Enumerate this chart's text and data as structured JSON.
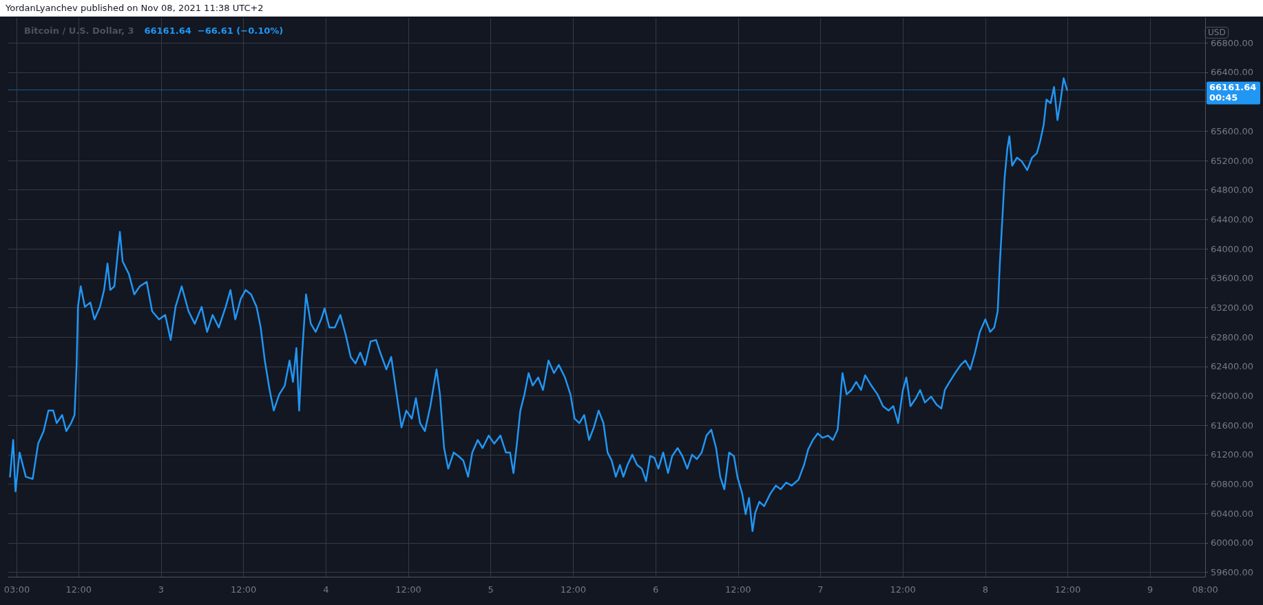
{
  "chart_data": {
    "type": "line",
    "title": "Bitcoin / U.S. Dollar, 3",
    "subtitle": "66161.64  −66.61 (−0.10%)",
    "ylabel": "USD",
    "annotations": [
      "YordanLyanchev published on Nov 08, 2021 11:38 UTC+2",
      "00:45"
    ],
    "xlim": [
      "2021-11-02T01:45",
      "2021-11-09T08:00"
    ],
    "xticks": [
      {
        "value": "2021-11-02T03:00",
        "label": "03:00"
      },
      {
        "value": "2021-11-02T12:00",
        "label": "12:00"
      },
      {
        "value": "2021-11-03",
        "label": "3"
      },
      {
        "value": "2021-11-03T12:00",
        "label": "12:00"
      },
      {
        "value": "2021-11-04",
        "label": "4"
      },
      {
        "value": "2021-11-04T12:00",
        "label": "12:00"
      },
      {
        "value": "2021-11-05",
        "label": "5"
      },
      {
        "value": "2021-11-05T12:00",
        "label": "12:00"
      },
      {
        "value": "2021-11-06",
        "label": "6"
      },
      {
        "value": "2021-11-06T12:00",
        "label": "12:00"
      },
      {
        "value": "2021-11-07",
        "label": "7"
      },
      {
        "value": "2021-11-07T12:00",
        "label": "12:00"
      },
      {
        "value": "2021-11-08",
        "label": "8"
      },
      {
        "value": "2021-11-08T12:00",
        "label": "12:00"
      },
      {
        "value": "2021-11-09",
        "label": "9"
      },
      {
        "value": "2021-11-09T08:00",
        "label": "08:00"
      }
    ],
    "ylim": [
      59540,
      67140
    ],
    "yticks": [
      {
        "value": 59600,
        "label": "59600.00"
      },
      {
        "value": 60000,
        "label": "60000.00"
      },
      {
        "value": 60400,
        "label": "60400.00"
      },
      {
        "value": 60800,
        "label": "60800.00"
      },
      {
        "value": 61200,
        "label": "61200.00"
      },
      {
        "value": 61600,
        "label": "61600.00"
      },
      {
        "value": 62000,
        "label": "62000.00"
      },
      {
        "value": 62400,
        "label": "62400.00"
      },
      {
        "value": 62800,
        "label": "62800.00"
      },
      {
        "value": 63200,
        "label": "63200.00"
      },
      {
        "value": 63600,
        "label": "63600.00"
      },
      {
        "value": 64000,
        "label": "64000.00"
      },
      {
        "value": 64400,
        "label": "64400.00"
      },
      {
        "value": 64800,
        "label": "64800.00"
      },
      {
        "value": 65200,
        "label": "65200.00"
      },
      {
        "value": 65600,
        "label": "65600.00"
      },
      {
        "value": 66000,
        "label": null
      },
      {
        "value": 66400,
        "label": "66400.00"
      },
      {
        "value": 66800,
        "label": "66800.00"
      }
    ],
    "grid": true,
    "marker": "none",
    "line_style": "solid",
    "ref_lines": [
      {
        "axis": "y",
        "value": 66161.64,
        "label": "66161.64",
        "color": "#2196f3",
        "line_style": "dotted"
      }
    ],
    "series": [
      {
        "color": "#2196f3",
        "x": [
          "2021-11-02T02:00",
          "2021-11-02T02:28",
          "2021-11-02T02:48",
          "2021-11-02T03:24",
          "2021-11-02T04:18",
          "2021-11-02T05:18",
          "2021-11-02T06:06",
          "2021-11-02T06:54",
          "2021-11-02T07:36",
          "2021-11-02T08:18",
          "2021-11-02T08:48",
          "2021-11-02T09:36",
          "2021-11-02T10:12",
          "2021-11-02T10:54",
          "2021-11-02T11:24",
          "2021-11-02T11:42",
          "2021-11-02T11:54",
          "2021-11-02T12:18",
          "2021-11-02T12:54",
          "2021-11-02T13:42",
          "2021-11-02T14:18",
          "2021-11-02T15:06",
          "2021-11-02T15:42",
          "2021-11-02T16:12",
          "2021-11-02T16:36",
          "2021-11-02T17:12",
          "2021-11-02T18:00",
          "2021-11-02T18:24",
          "2021-11-02T19:18",
          "2021-11-02T20:06",
          "2021-11-02T20:54",
          "2021-11-02T21:54",
          "2021-11-02T22:42",
          "2021-11-02T23:42",
          "2021-11-03T00:36",
          "2021-11-03T01:24",
          "2021-11-03T02:06",
          "2021-11-03T03:00",
          "2021-11-03T04:00",
          "2021-11-03T04:54",
          "2021-11-03T05:54",
          "2021-11-03T06:42",
          "2021-11-03T07:30",
          "2021-11-03T08:24",
          "2021-11-03T09:24",
          "2021-11-03T10:06",
          "2021-11-03T10:48",
          "2021-11-03T11:36",
          "2021-11-03T12:18",
          "2021-11-03T13:06",
          "2021-11-03T13:54",
          "2021-11-03T14:30",
          "2021-11-03T15:06",
          "2021-11-03T15:48",
          "2021-11-03T16:24",
          "2021-11-03T17:12",
          "2021-11-03T18:00",
          "2021-11-03T18:42",
          "2021-11-03T19:12",
          "2021-11-03T19:42",
          "2021-11-03T20:06",
          "2021-11-03T20:30",
          "2021-11-03T21:06",
          "2021-11-03T21:48",
          "2021-11-03T22:30",
          "2021-11-03T23:18",
          "2021-11-03T23:48",
          "2021-11-04T00:30",
          "2021-11-04T01:18",
          "2021-11-04T02:06",
          "2021-11-04T02:54",
          "2021-11-04T03:36",
          "2021-11-04T04:18",
          "2021-11-04T05:00",
          "2021-11-04T05:42",
          "2021-11-04T06:30",
          "2021-11-04T07:18",
          "2021-11-04T07:54",
          "2021-11-04T08:48",
          "2021-11-04T09:30",
          "2021-11-04T10:12",
          "2021-11-04T11:00",
          "2021-11-04T11:42",
          "2021-11-04T12:30",
          "2021-11-04T13:06",
          "2021-11-04T13:42",
          "2021-11-04T14:24",
          "2021-11-04T15:12",
          "2021-11-04T16:06",
          "2021-11-04T16:36",
          "2021-11-04T17:12",
          "2021-11-04T17:48",
          "2021-11-04T18:36",
          "2021-11-04T19:18",
          "2021-11-04T20:00",
          "2021-11-04T20:42",
          "2021-11-04T21:18",
          "2021-11-04T22:06",
          "2021-11-04T22:48",
          "2021-11-04T23:42",
          "2021-11-05T00:30",
          "2021-11-05T01:24",
          "2021-11-05T02:12",
          "2021-11-05T02:48",
          "2021-11-05T03:18",
          "2021-11-05T03:48",
          "2021-11-05T04:18",
          "2021-11-05T04:54",
          "2021-11-05T05:30",
          "2021-11-05T06:06",
          "2021-11-05T06:54",
          "2021-11-05T07:36",
          "2021-11-05T08:24",
          "2021-11-05T09:12",
          "2021-11-05T09:54",
          "2021-11-05T10:48",
          "2021-11-05T11:36",
          "2021-11-05T12:12",
          "2021-11-05T12:54",
          "2021-11-05T13:36",
          "2021-11-05T14:18",
          "2021-11-05T15:00",
          "2021-11-05T15:42",
          "2021-11-05T16:24",
          "2021-11-05T17:00",
          "2021-11-05T17:36",
          "2021-11-05T18:12",
          "2021-11-05T18:48",
          "2021-11-05T19:18",
          "2021-11-05T19:54",
          "2021-11-05T20:36",
          "2021-11-05T21:18",
          "2021-11-05T22:00",
          "2021-11-05T22:36",
          "2021-11-05T23:12",
          "2021-11-05T23:48",
          "2021-11-06T00:24",
          "2021-11-06T01:06",
          "2021-11-06T01:48",
          "2021-11-06T02:24",
          "2021-11-06T03:12",
          "2021-11-06T03:54",
          "2021-11-06T04:36",
          "2021-11-06T05:18",
          "2021-11-06T06:00",
          "2021-11-06T06:42",
          "2021-11-06T07:24",
          "2021-11-06T08:06",
          "2021-11-06T08:48",
          "2021-11-06T09:24",
          "2021-11-06T10:00",
          "2021-11-06T10:42",
          "2021-11-06T11:24",
          "2021-11-06T11:54",
          "2021-11-06T12:36",
          "2021-11-06T13:06",
          "2021-11-06T13:36",
          "2021-11-06T14:06",
          "2021-11-06T14:30",
          "2021-11-06T15:06",
          "2021-11-06T15:48",
          "2021-11-06T16:42",
          "2021-11-06T17:30",
          "2021-11-06T18:12",
          "2021-11-06T19:00",
          "2021-11-06T19:48",
          "2021-11-06T20:48",
          "2021-11-06T21:36",
          "2021-11-06T22:12",
          "2021-11-06T22:54",
          "2021-11-06T23:36",
          "2021-11-07T00:18",
          "2021-11-07T01:06",
          "2021-11-07T01:48",
          "2021-11-07T02:30",
          "2021-11-07T03:12",
          "2021-11-07T03:48",
          "2021-11-07T04:30",
          "2021-11-07T05:12",
          "2021-11-07T05:54",
          "2021-11-07T06:30",
          "2021-11-07T07:24",
          "2021-11-07T08:18",
          "2021-11-07T09:06",
          "2021-11-07T09:54",
          "2021-11-07T10:36",
          "2021-11-07T11:18",
          "2021-11-07T12:00",
          "2021-11-07T12:30",
          "2021-11-07T13:06",
          "2021-11-07T13:54",
          "2021-11-07T14:30",
          "2021-11-07T15:12",
          "2021-11-07T16:06",
          "2021-11-07T16:54",
          "2021-11-07T17:36",
          "2021-11-07T18:06",
          "2021-11-07T18:48",
          "2021-11-07T19:36",
          "2021-11-07T20:24",
          "2021-11-07T21:06",
          "2021-11-07T21:48",
          "2021-11-07T22:30",
          "2021-11-07T23:12",
          "2021-11-08T00:00",
          "2021-11-08T00:42",
          "2021-11-08T01:18",
          "2021-11-08T01:48",
          "2021-11-08T02:06",
          "2021-11-08T02:30",
          "2021-11-08T02:48",
          "2021-11-08T03:12",
          "2021-11-08T03:30",
          "2021-11-08T03:54",
          "2021-11-08T04:36",
          "2021-11-08T05:18",
          "2021-11-08T06:06",
          "2021-11-08T06:48",
          "2021-11-08T07:30",
          "2021-11-08T08:00",
          "2021-11-08T08:30",
          "2021-11-08T08:54",
          "2021-11-08T09:30",
          "2021-11-08T10:00",
          "2021-11-08T10:30",
          "2021-11-08T10:54",
          "2021-11-08T11:24",
          "2021-11-08T11:54"
        ],
        "values": [
          60900,
          61400,
          60700,
          61230,
          60900,
          60870,
          61350,
          61520,
          61800,
          61800,
          61630,
          61740,
          61520,
          61630,
          61740,
          62420,
          63210,
          63490,
          63210,
          63270,
          63040,
          63210,
          63440,
          63800,
          63440,
          63490,
          64230,
          63830,
          63660,
          63380,
          63490,
          63550,
          63150,
          63040,
          63100,
          62760,
          63210,
          63490,
          63150,
          62980,
          63210,
          62870,
          63100,
          62930,
          63210,
          63440,
          63040,
          63320,
          63440,
          63380,
          63210,
          62930,
          62480,
          62080,
          61800,
          62020,
          62140,
          62480,
          62190,
          62650,
          61800,
          62530,
          63380,
          62980,
          62870,
          63040,
          63190,
          62930,
          62930,
          63100,
          62820,
          62530,
          62440,
          62590,
          62420,
          62740,
          62760,
          62590,
          62360,
          62530,
          62080,
          61570,
          61800,
          61690,
          61970,
          61630,
          61520,
          61860,
          62360,
          62020,
          61290,
          61010,
          61230,
          61180,
          61120,
          60900,
          61230,
          61400,
          61290,
          61460,
          61350,
          61460,
          61230,
          61230,
          60950,
          61350,
          61800,
          62020,
          62310,
          62140,
          62250,
          62080,
          62480,
          62310,
          62420,
          62250,
          62020,
          61690,
          61630,
          61740,
          61400,
          61570,
          61800,
          61630,
          61230,
          61120,
          60900,
          61060,
          60900,
          61060,
          61200,
          61060,
          61010,
          60840,
          61180,
          61160,
          61010,
          61230,
          60950,
          61180,
          61290,
          61180,
          61010,
          61200,
          61140,
          61230,
          61460,
          61540,
          61290,
          60900,
          60730,
          61230,
          61180,
          60900,
          60670,
          60390,
          60610,
          60160,
          60410,
          60560,
          60500,
          60670,
          60780,
          60730,
          60820,
          60780,
          60860,
          61060,
          61270,
          61400,
          61490,
          61430,
          61460,
          61400,
          61540,
          62310,
          62020,
          62080,
          62190,
          62080,
          62280,
          62140,
          62020,
          61860,
          61800,
          61860,
          61630,
          62080,
          62250,
          61860,
          61970,
          62080,
          61910,
          61990,
          61880,
          61830,
          62080,
          62190,
          62310,
          62420,
          62480,
          62360,
          62590,
          62870,
          63040,
          62870,
          62930,
          63150,
          63780,
          64450,
          64960,
          65360,
          65530,
          65130,
          65240,
          65190,
          65070,
          65240,
          65300,
          65470,
          65690,
          66030,
          65980,
          66200,
          65750,
          65980,
          66320,
          66160
        ]
      }
    ]
  }
}
